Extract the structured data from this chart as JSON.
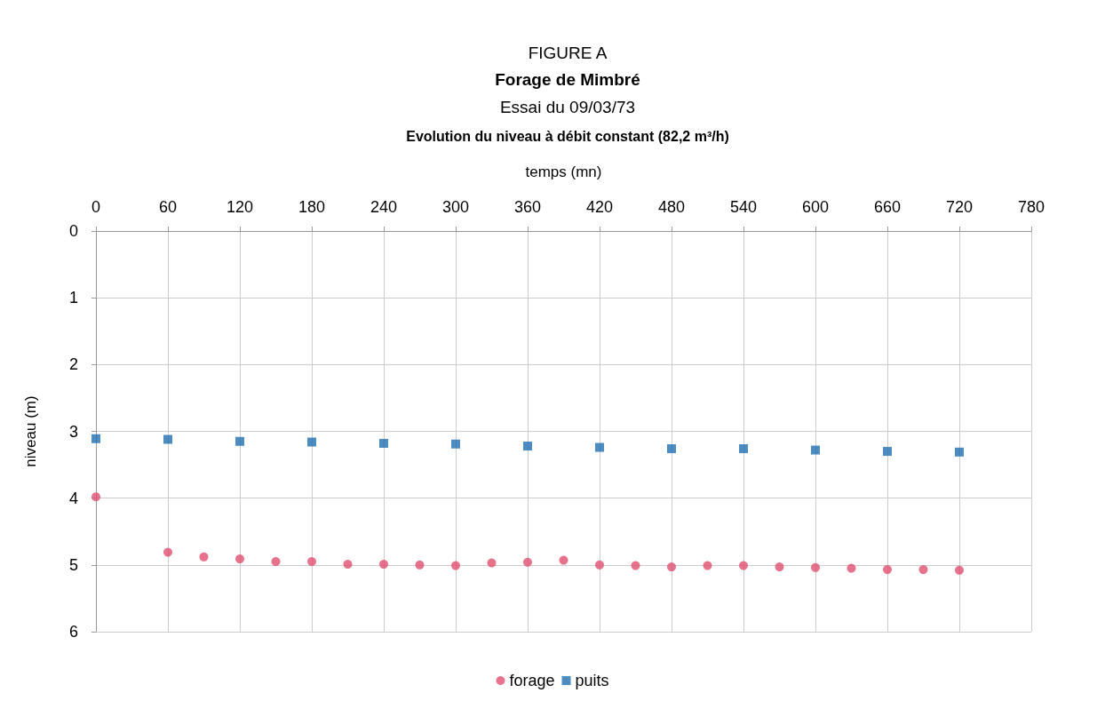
{
  "chart_data": {
    "type": "scatter",
    "title": "FIGURE A",
    "subtitle": "Forage de Mimbré",
    "annotations": [
      "Essai du 09/03/73",
      "Evolution du niveau à débit constant (82,2 m³/h)"
    ],
    "xlabel": "temps (mn)",
    "ylabel": "niveau (m)",
    "xlim": [
      0,
      780
    ],
    "xticks": [
      0,
      60,
      120,
      180,
      240,
      300,
      360,
      420,
      480,
      540,
      600,
      660,
      720,
      780
    ],
    "ylim": [
      6,
      0
    ],
    "yticks": [
      0,
      1,
      2,
      3,
      4,
      5,
      6
    ],
    "grid": true,
    "legend": "bottom",
    "series": [
      {
        "name": "forage",
        "color": "#e0506e",
        "marker": "circle",
        "x": [
          0,
          60,
          90,
          120,
          150,
          180,
          210,
          240,
          270,
          300,
          330,
          360,
          390,
          420,
          450,
          480,
          510,
          540,
          570,
          600,
          630,
          660,
          690,
          720
        ],
        "values": [
          3.98,
          4.81,
          4.88,
          4.91,
          4.95,
          4.95,
          4.99,
          4.99,
          5.0,
          5.01,
          4.97,
          4.96,
          4.93,
          5.0,
          5.01,
          5.03,
          5.01,
          5.01,
          5.03,
          5.04,
          5.05,
          5.07,
          5.07,
          5.08
        ]
      },
      {
        "name": "puits",
        "color": "#1f6fb2",
        "marker": "square",
        "x": [
          0,
          60,
          120,
          180,
          240,
          300,
          360,
          420,
          480,
          540,
          600,
          660,
          720
        ],
        "values": [
          3.11,
          3.12,
          3.15,
          3.16,
          3.18,
          3.19,
          3.22,
          3.24,
          3.26,
          3.26,
          3.28,
          3.3,
          3.31
        ]
      }
    ]
  }
}
